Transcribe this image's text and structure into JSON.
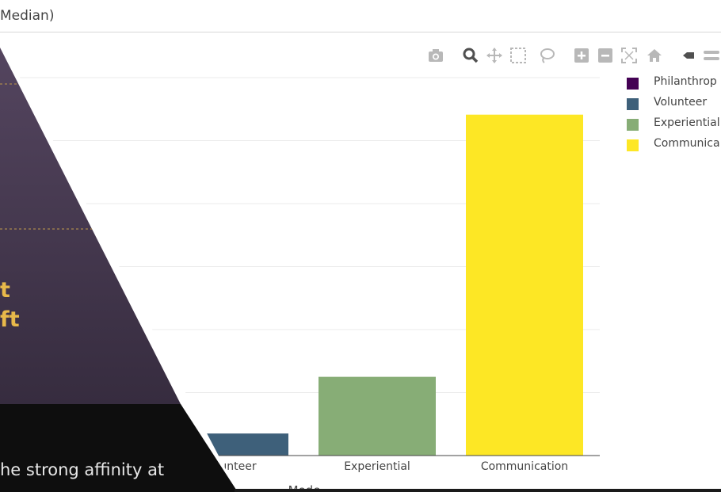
{
  "page": {
    "title_fragment": "Median)"
  },
  "modebar": {
    "icons": [
      "camera-icon",
      "zoom-icon",
      "pan-icon",
      "box-select-icon",
      "lasso-select-icon",
      "zoom-in-icon",
      "zoom-out-icon",
      "autoscale-icon",
      "reset-axes-icon",
      "spike-lines-icon",
      "compare-hover-icon"
    ]
  },
  "chart_data": {
    "type": "bar",
    "categories": [
      "Philanthropy",
      "Volunteer",
      "Experiential",
      "Communication"
    ],
    "tick_labels": [
      "Volunteer",
      "Experiential",
      "Communication"
    ],
    "values": [
      0,
      0.28,
      1.0,
      4.33
    ],
    "colors": [
      "#440154",
      "#3e607a",
      "#87ad76",
      "#fde725"
    ],
    "xlabel": "Mode",
    "ylim": [
      0,
      4.8
    ],
    "grid": true,
    "legend_placement": "right",
    "legend": [
      {
        "label": "Philanthrop",
        "color": "#440154"
      },
      {
        "label": "Volunteer",
        "color": "#3e607a"
      },
      {
        "label": "Experiential",
        "color": "#87ad76"
      },
      {
        "label": "Communica",
        "color": "#fde725"
      }
    ]
  },
  "overlay": {
    "slide_lines": [
      "t",
      "ft"
    ],
    "caption": "he strong affinity at",
    "colors": {
      "panel": "#3b2f46",
      "accent": "#e8b94a",
      "bottom": "#0e0e0e"
    }
  }
}
